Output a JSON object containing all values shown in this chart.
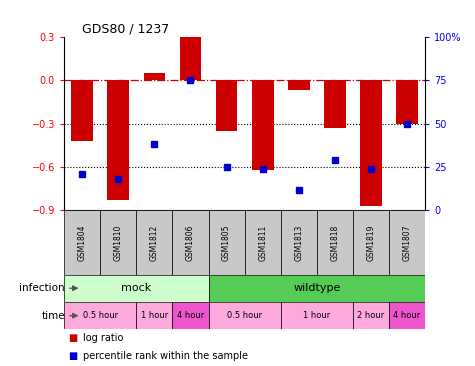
{
  "title": "GDS80 / 1237",
  "samples": [
    "GSM1804",
    "GSM1810",
    "GSM1812",
    "GSM1806",
    "GSM1805",
    "GSM1811",
    "GSM1813",
    "GSM1818",
    "GSM1819",
    "GSM1807"
  ],
  "log_ratio": [
    -0.42,
    -0.83,
    0.05,
    0.3,
    -0.35,
    -0.62,
    -0.07,
    -0.33,
    -0.87,
    -0.3
  ],
  "percentile": [
    21,
    18,
    38,
    75,
    25,
    24,
    12,
    29,
    24,
    50
  ],
  "ylim_left": [
    -0.9,
    0.3
  ],
  "ylim_right": [
    0,
    100
  ],
  "yticks_left": [
    -0.9,
    -0.6,
    -0.3,
    0.0,
    0.3
  ],
  "yticks_right": [
    0,
    25,
    50,
    75,
    100
  ],
  "bar_color": "#cc0000",
  "dot_color": "#0000cc",
  "hline_color": "#cc0000",
  "dotted_lines": [
    -0.3,
    -0.6
  ],
  "bar_width": 0.6,
  "mock_color": "#ccffcc",
  "wildtype_color": "#55cc55",
  "gsm_color": "#c8c8c8",
  "time_light": "#ffaadd",
  "time_dark": "#ee55cc",
  "legend_bar_label": "log ratio",
  "legend_dot_label": "percentile rank within the sample"
}
